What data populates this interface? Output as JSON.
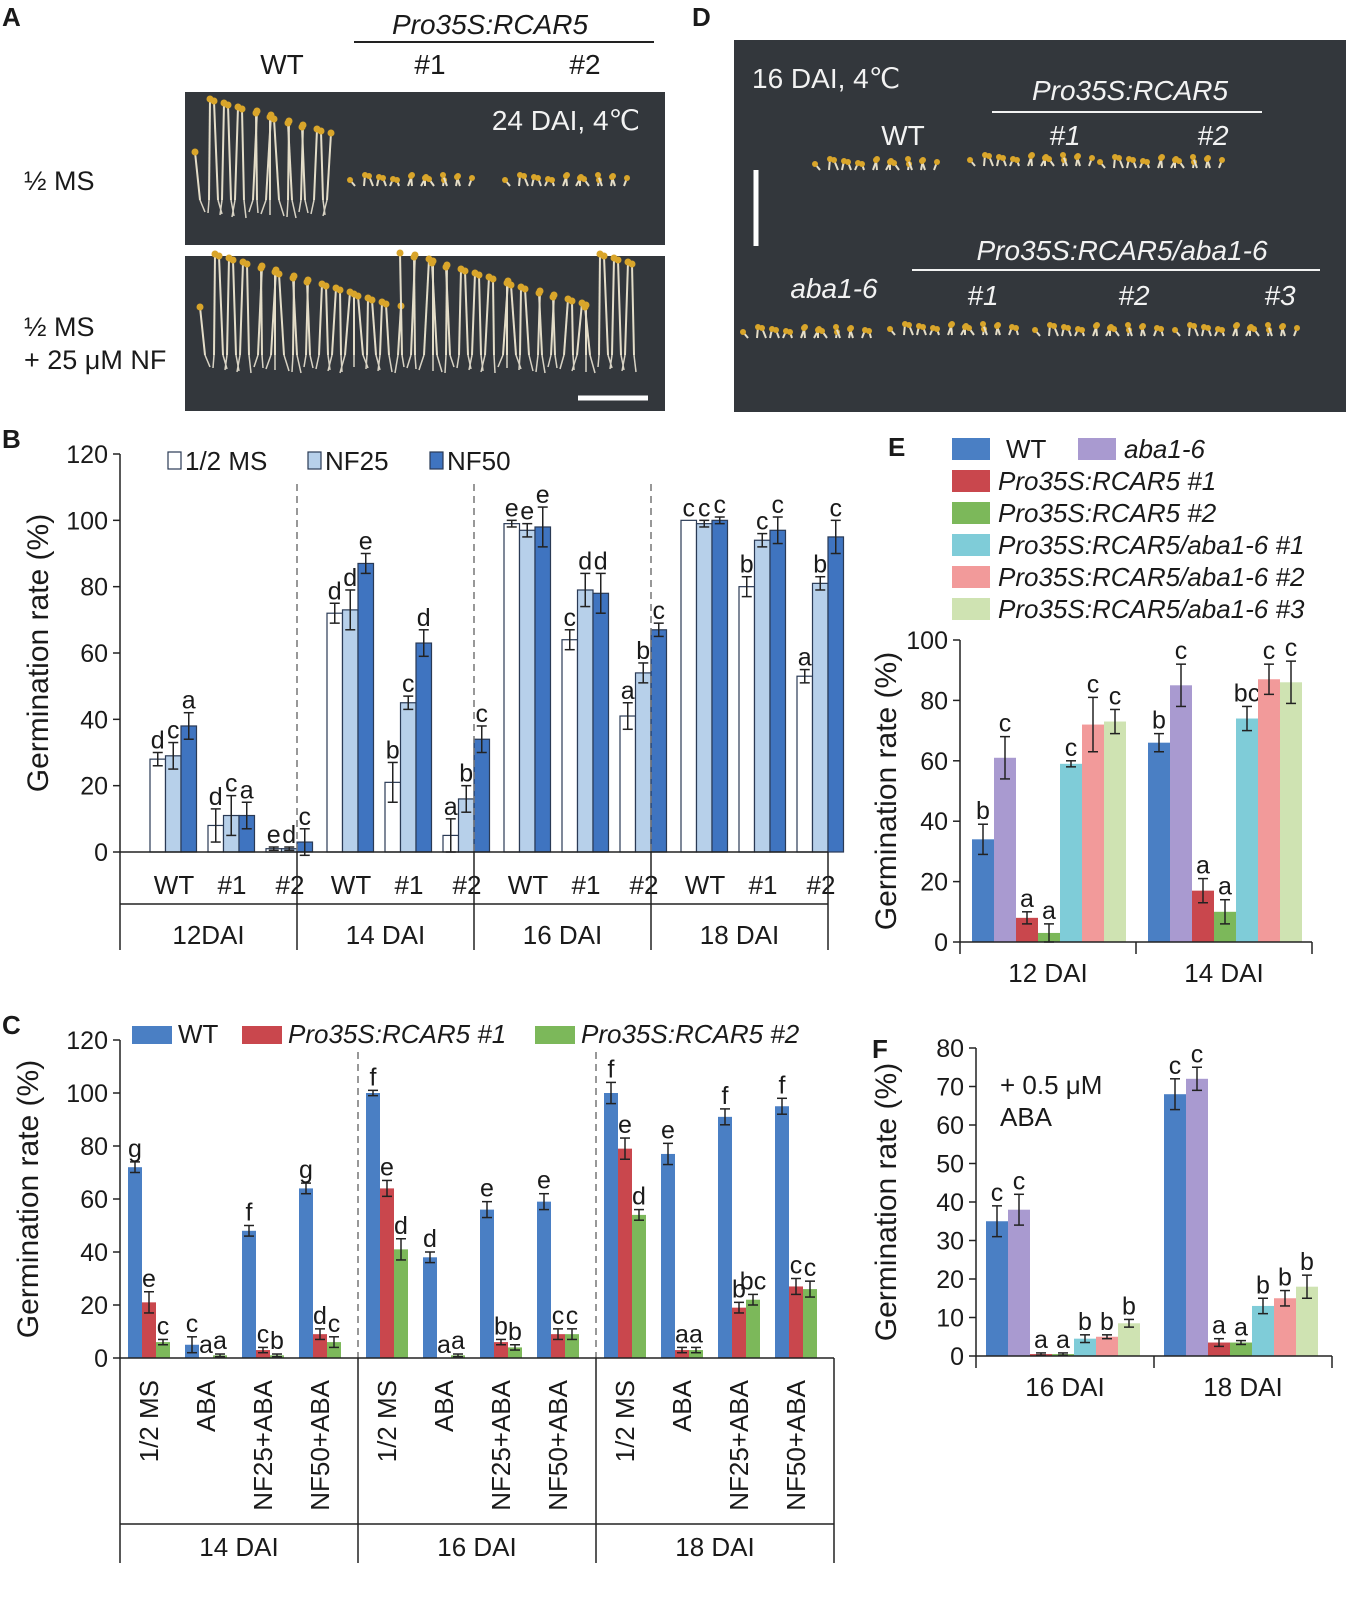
{
  "colors": {
    "wt": "#4a7fc4",
    "rcar1": "#c9474d",
    "rcar2": "#7cb85a",
    "aba16": "#a99ad0",
    "aba_r1": "#7fccd8",
    "aba_r2": "#f29a9a",
    "aba_r3": "#cfe3b2",
    "half_ms": "#ffffff",
    "nf25": "#b7d0ea",
    "nf50": "#3f74c0",
    "photo_bg": "#33373c"
  },
  "panels": {
    "A": {
      "label": "A",
      "genotype_header": "Pro35S:RCAR5",
      "columns": [
        "WT",
        "#1",
        "#2"
      ],
      "row_labels": [
        "½ MS",
        "½ MS",
        "+ 25 μM NF"
      ],
      "condition": "24 DAI, 4℃"
    },
    "D": {
      "label": "D",
      "condition": "16 DAI, 4℃",
      "header_top": "Pro35S:RCAR5",
      "top_cols": [
        "WT",
        "#1",
        "#2"
      ],
      "header_bottom": "Pro35S:RCAR5/aba1-6",
      "bottom_cols": [
        "aba1-6",
        "#1",
        "#2",
        "#3"
      ]
    }
  },
  "chart_data": [
    {
      "panel": "B",
      "type": "bar",
      "ylabel": "Germination rate (%)",
      "ylim": [
        0,
        120
      ],
      "yticks": [
        "0",
        "20",
        "40",
        "60",
        "80",
        "100",
        "120"
      ],
      "legend": [
        "1/2 MS",
        "NF25",
        "NF50"
      ],
      "groups": [
        "12DAI",
        "14 DAI",
        "16 DAI",
        "18 DAI"
      ],
      "categories": [
        "WT",
        "#1",
        "#2"
      ],
      "series": [
        {
          "name": "1/2 MS",
          "values": [
            [
              28,
              8,
              1
            ],
            [
              72,
              21,
              5
            ],
            [
              99,
              64,
              41
            ],
            [
              100,
              80,
              53
            ]
          ],
          "errors": [
            [
              2,
              5,
              0.5
            ],
            [
              3,
              6,
              5
            ],
            [
              1,
              3,
              4
            ],
            [
              0,
              3,
              2
            ]
          ]
        },
        {
          "name": "NF25",
          "values": [
            [
              29,
              11,
              1
            ],
            [
              73,
              45,
              16
            ],
            [
              97,
              79,
              54
            ],
            [
              99,
              94,
              81
            ]
          ],
          "errors": [
            [
              4,
              6,
              0.5
            ],
            [
              6,
              2,
              4
            ],
            [
              2,
              5,
              3
            ],
            [
              1,
              2,
              2
            ]
          ]
        },
        {
          "name": "NF50",
          "values": [
            [
              38,
              11,
              3
            ],
            [
              87,
              63,
              34
            ],
            [
              98,
              78,
              67
            ],
            [
              100,
              97,
              95
            ]
          ],
          "errors": [
            [
              4,
              4,
              4
            ],
            [
              3,
              4,
              4
            ],
            [
              6,
              6,
              2
            ],
            [
              1,
              4,
              5
            ]
          ]
        }
      ],
      "letters": [
        [
          [
            "d",
            "c",
            "a"
          ],
          [
            "d",
            "c",
            "a"
          ],
          [
            "e",
            "d",
            "c"
          ]
        ],
        [
          [
            "d",
            "d",
            "e"
          ],
          [
            "b",
            "c",
            "d"
          ],
          [
            "a",
            "b",
            "c"
          ]
        ],
        [
          [
            "e",
            "e",
            "e"
          ],
          [
            "c",
            "d",
            "d"
          ],
          [
            "a",
            "b",
            "c"
          ]
        ],
        [
          [
            "c",
            "c",
            "c"
          ],
          [
            "b",
            "c",
            "c"
          ],
          [
            "a",
            "b",
            "c"
          ]
        ]
      ]
    },
    {
      "panel": "C",
      "type": "bar",
      "ylabel": "Germination rate (%)",
      "ylim": [
        0,
        120
      ],
      "yticks": [
        "0",
        "20",
        "40",
        "60",
        "80",
        "100",
        "120"
      ],
      "legend": [
        "WT",
        "Pro35S:RCAR5 #1",
        "Pro35S:RCAR5 #2"
      ],
      "groups": [
        "14 DAI",
        "16 DAI",
        "18 DAI"
      ],
      "categories": [
        "1/2 MS",
        "ABA",
        "NF25+ABA",
        "NF50+ABA"
      ],
      "series": [
        {
          "name": "WT",
          "values": [
            [
              72,
              5,
              48,
              64
            ],
            [
              100,
              38,
              56,
              59
            ],
            [
              100,
              77,
              91,
              95
            ]
          ],
          "errors": [
            [
              2,
              3,
              2,
              2
            ],
            [
              1,
              2,
              3,
              3
            ],
            [
              4,
              4,
              3,
              3
            ]
          ]
        },
        {
          "name": "Pro35S:RCAR5 #1",
          "values": [
            [
              21,
              0,
              3,
              9
            ],
            [
              64,
              0,
              6,
              9
            ],
            [
              79,
              3,
              19,
              27
            ]
          ],
          "errors": [
            [
              4,
              0,
              1,
              2
            ],
            [
              3,
              0,
              1,
              2
            ],
            [
              4,
              1,
              2,
              3
            ]
          ]
        },
        {
          "name": "Pro35S:RCAR5 #2",
          "values": [
            [
              6,
              1,
              1,
              6
            ],
            [
              41,
              1,
              4,
              9
            ],
            [
              54,
              3,
              22,
              26
            ]
          ],
          "errors": [
            [
              1,
              0.5,
              0.5,
              2
            ],
            [
              4,
              0.5,
              1,
              2
            ],
            [
              2,
              1,
              2,
              3
            ]
          ]
        }
      ],
      "letters": [
        [
          [
            "g",
            "e",
            "c"
          ],
          [
            "c",
            "a",
            "a"
          ],
          [
            "f",
            "c",
            "b"
          ],
          [
            "g",
            "d",
            "c"
          ]
        ],
        [
          [
            "f",
            "e",
            "d"
          ],
          [
            "d",
            "a",
            "a"
          ],
          [
            "e",
            "b",
            "b"
          ],
          [
            "e",
            "c",
            "c"
          ]
        ],
        [
          [
            "f",
            "e",
            "d"
          ],
          [
            "e",
            "a",
            "a"
          ],
          [
            "f",
            "b",
            "bc"
          ],
          [
            "f",
            "c",
            "c"
          ]
        ]
      ]
    },
    {
      "panel": "E",
      "type": "bar",
      "ylabel": "Germination rate (%)",
      "ylim": [
        0,
        100
      ],
      "yticks": [
        "0",
        "20",
        "40",
        "60",
        "80",
        "100"
      ],
      "legend": [
        "WT",
        "aba1-6",
        "Pro35S:RCAR5 #1",
        "Pro35S:RCAR5 #2",
        "Pro35S:RCAR5/aba1-6 #1",
        "Pro35S:RCAR5/aba1-6 #2",
        "Pro35S:RCAR5/aba1-6 #3"
      ],
      "categories": [
        "12 DAI",
        "14 DAI"
      ],
      "series": [
        {
          "name": "WT",
          "values": [
            34,
            66
          ],
          "errors": [
            5,
            3
          ]
        },
        {
          "name": "aba1-6",
          "values": [
            61,
            85
          ],
          "errors": [
            7,
            7
          ]
        },
        {
          "name": "Pro35S:RCAR5 #1",
          "values": [
            8,
            17
          ],
          "errors": [
            2,
            4
          ]
        },
        {
          "name": "Pro35S:RCAR5 #2",
          "values": [
            3,
            10
          ],
          "errors": [
            3,
            4
          ]
        },
        {
          "name": "Pro35S:RCAR5/aba1-6 #1",
          "values": [
            59,
            74
          ],
          "errors": [
            1,
            4
          ]
        },
        {
          "name": "Pro35S:RCAR5/aba1-6 #2",
          "values": [
            72,
            87
          ],
          "errors": [
            9,
            5
          ]
        },
        {
          "name": "Pro35S:RCAR5/aba1-6 #3",
          "values": [
            73,
            86
          ],
          "errors": [
            4,
            7
          ]
        }
      ],
      "letters": [
        [
          "b",
          "c",
          "a",
          "a",
          "c",
          "c",
          "c"
        ],
        [
          "b",
          "c",
          "a",
          "a",
          "bc",
          "c",
          "c"
        ]
      ]
    },
    {
      "panel": "F",
      "type": "bar",
      "ylabel": "Germination rate (%)",
      "ylim": [
        0,
        80
      ],
      "yticks": [
        "0",
        "10",
        "20",
        "30",
        "40",
        "50",
        "60",
        "70",
        "80"
      ],
      "annotation": [
        "+ 0.5 μM",
        "ABA"
      ],
      "categories": [
        "16 DAI",
        "18 DAI"
      ],
      "series": [
        {
          "name": "WT",
          "values": [
            35,
            68
          ],
          "errors": [
            4,
            4
          ]
        },
        {
          "name": "aba1-6",
          "values": [
            38,
            72
          ],
          "errors": [
            4,
            3
          ]
        },
        {
          "name": "Pro35S:RCAR5 #1",
          "values": [
            0.5,
            3.5
          ],
          "errors": [
            0.3,
            1
          ]
        },
        {
          "name": "Pro35S:RCAR5 #2",
          "values": [
            0.5,
            3.5
          ],
          "errors": [
            0.3,
            0.5
          ]
        },
        {
          "name": "Pro35S:RCAR5/aba1-6 #1",
          "values": [
            4.5,
            13
          ],
          "errors": [
            1,
            2
          ]
        },
        {
          "name": "Pro35S:RCAR5/aba1-6 #2",
          "values": [
            5,
            15
          ],
          "errors": [
            0.5,
            2
          ]
        },
        {
          "name": "Pro35S:RCAR5/aba1-6 #3",
          "values": [
            8.5,
            18
          ],
          "errors": [
            1,
            3
          ]
        }
      ],
      "letters": [
        [
          "c",
          "c",
          "a",
          "a",
          "b",
          "b",
          "b"
        ],
        [
          "c",
          "c",
          "a",
          "a",
          "b",
          "b",
          "b"
        ]
      ]
    }
  ]
}
